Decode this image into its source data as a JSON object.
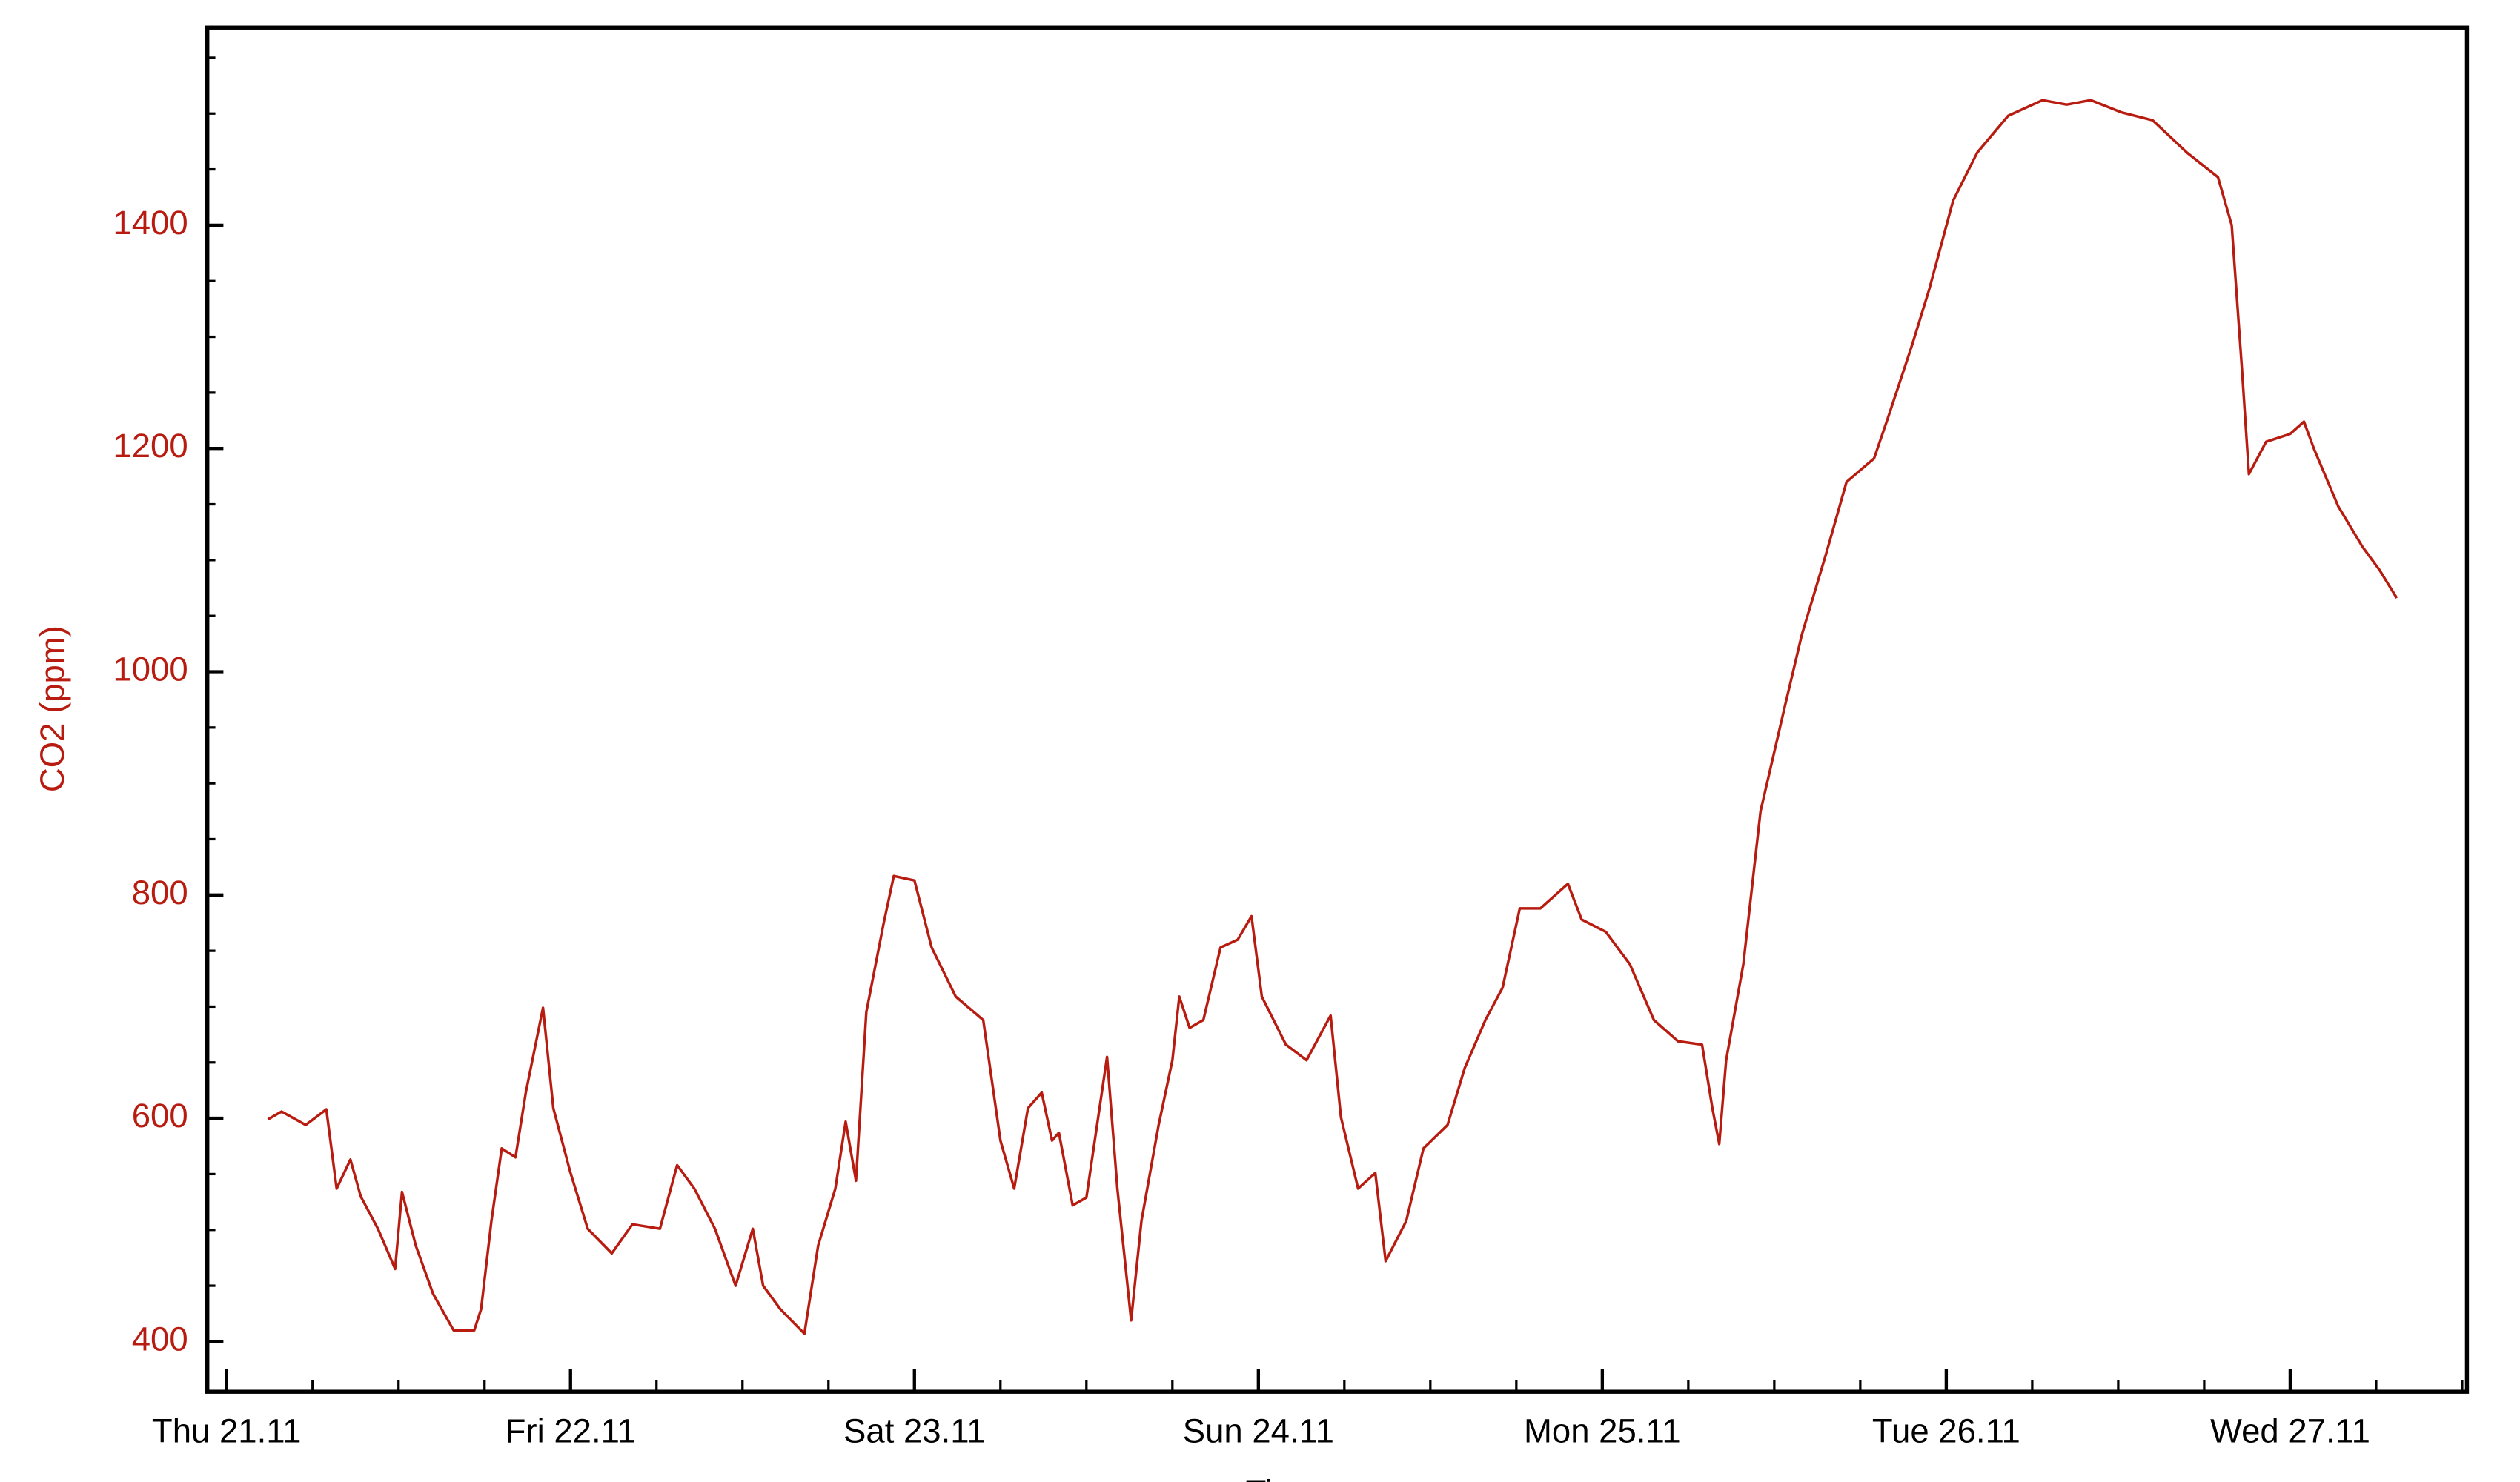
{
  "chart_data": {
    "type": "line",
    "xlabel": "Time",
    "ylabel": "CO2 (ppm)",
    "x": [
      0.12,
      0.16,
      0.23,
      0.29,
      0.32,
      0.36,
      0.39,
      0.44,
      0.49,
      0.51,
      0.55,
      0.6,
      0.66,
      0.72,
      0.74,
      0.77,
      0.8,
      0.84,
      0.87,
      0.92,
      0.95,
      1.0,
      1.05,
      1.12,
      1.18,
      1.26,
      1.31,
      1.36,
      1.42,
      1.48,
      1.53,
      1.56,
      1.61,
      1.68,
      1.72,
      1.77,
      1.8,
      1.83,
      1.86,
      1.91,
      1.94,
      2.0,
      2.05,
      2.12,
      2.2,
      2.25,
      2.29,
      2.33,
      2.37,
      2.4,
      2.42,
      2.46,
      2.5,
      2.56,
      2.59,
      2.63,
      2.66,
      2.71,
      2.75,
      2.77,
      2.8,
      2.84,
      2.89,
      2.94,
      2.98,
      3.01,
      3.08,
      3.14,
      3.21,
      3.24,
      3.29,
      3.34,
      3.37,
      3.43,
      3.48,
      3.55,
      3.6,
      3.66,
      3.71,
      3.76,
      3.82,
      3.9,
      3.94,
      4.01,
      4.08,
      4.15,
      4.22,
      4.29,
      4.32,
      4.34,
      4.36,
      4.41,
      4.46,
      4.53,
      4.58,
      4.65,
      4.71,
      4.79,
      4.83,
      4.9,
      4.95,
      5.02,
      5.09,
      5.18,
      5.28,
      5.35,
      5.42,
      5.51,
      5.6,
      5.7,
      5.79,
      5.83,
      5.86,
      5.88,
      5.93,
      6.0,
      6.04,
      6.07,
      6.14,
      6.21,
      6.26,
      6.31
    ],
    "series": [
      {
        "name": "CO2",
        "color": "#b81c10",
        "values": [
          599,
          606,
          594,
          608,
          537,
          563,
          530,
          501,
          465,
          534,
          486,
          443,
          410,
          410,
          429,
          508,
          573,
          565,
          623,
          699,
          609,
          551,
          501,
          479,
          505,
          501,
          558,
          537,
          501,
          450,
          501,
          450,
          429,
          407,
          486,
          537,
          597,
          544,
          695,
          774,
          817,
          813,
          753,
          709,
          688,
          580,
          537,
          609,
          623,
          580,
          587,
          522,
          529,
          655,
          537,
          419,
          508,
          594,
          652,
          709,
          681,
          688,
          753,
          760,
          781,
          709,
          666,
          652,
          692,
          601,
          537,
          551,
          472,
          508,
          573,
          594,
          645,
          688,
          717,
          788,
          788,
          810,
          778,
          767,
          738,
          688,
          669,
          666,
          609,
          577,
          652,
          738,
          875,
          968,
          1033,
          1105,
          1170,
          1191,
          1227,
          1292,
          1342,
          1422,
          1465,
          1498,
          1512,
          1508,
          1512,
          1501,
          1494,
          1465,
          1443,
          1400,
          1270,
          1177,
          1206,
          1213,
          1224,
          1199,
          1148,
          1112,
          1091,
          1066
        ]
      }
    ],
    "xlim": [
      -0.056,
      6.514
    ],
    "xticks": [
      {
        "value": 0,
        "label": "Thu 21.11"
      },
      {
        "value": 1,
        "label": "Fri 22.11"
      },
      {
        "value": 2,
        "label": "Sat 23.11"
      },
      {
        "value": 3,
        "label": "Sun 24.11"
      },
      {
        "value": 4,
        "label": "Mon 25.11"
      },
      {
        "value": 5,
        "label": "Tue 26.11"
      },
      {
        "value": 6,
        "label": "Wed 27.11"
      }
    ],
    "x_minor_ticks": [
      0.25,
      0.5,
      0.75,
      1.25,
      1.5,
      1.75,
      2.25,
      2.5,
      2.75,
      3.25,
      3.5,
      3.75,
      4.25,
      4.5,
      4.75,
      5.25,
      5.5,
      5.75,
      6.25,
      6.5
    ],
    "ylim": [
      355,
      1577
    ],
    "yticks": [
      400,
      600,
      800,
      1000,
      1200,
      1400
    ],
    "y_minor_ticks": [
      450,
      500,
      550,
      650,
      700,
      750,
      850,
      900,
      950,
      1050,
      1100,
      1150,
      1250,
      1300,
      1350,
      1450,
      1500,
      1550
    ],
    "axis_color": "#b81c10",
    "grid": false
  }
}
